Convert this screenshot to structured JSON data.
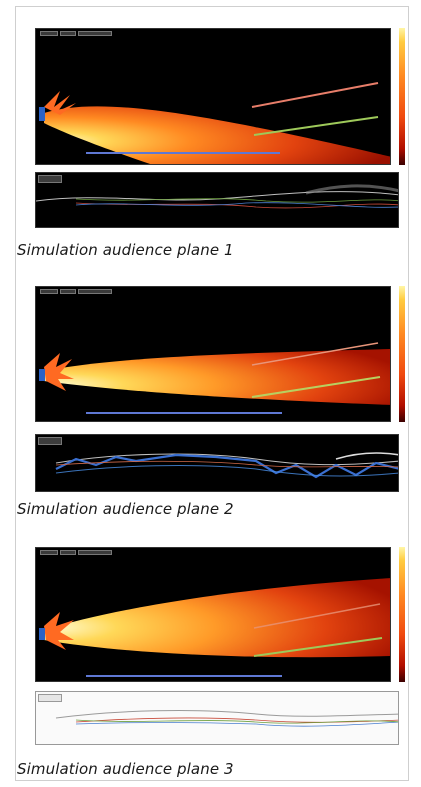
{
  "captions": [
    "Simulation audience plane 1",
    "Simulation audience plane 2",
    "Simulation audience plane 3"
  ],
  "colors": {
    "background": "#000000",
    "beam_core": "#fff6a6",
    "beam_mid": "#ff8a22",
    "beam_edge": "#c81e08",
    "source": "#2a62c8",
    "line_red": "#e87e6a",
    "line_green": "#9ec95a",
    "line_blue": "#5f78d4"
  },
  "icons": {
    "source": "speaker-array-icon"
  }
}
